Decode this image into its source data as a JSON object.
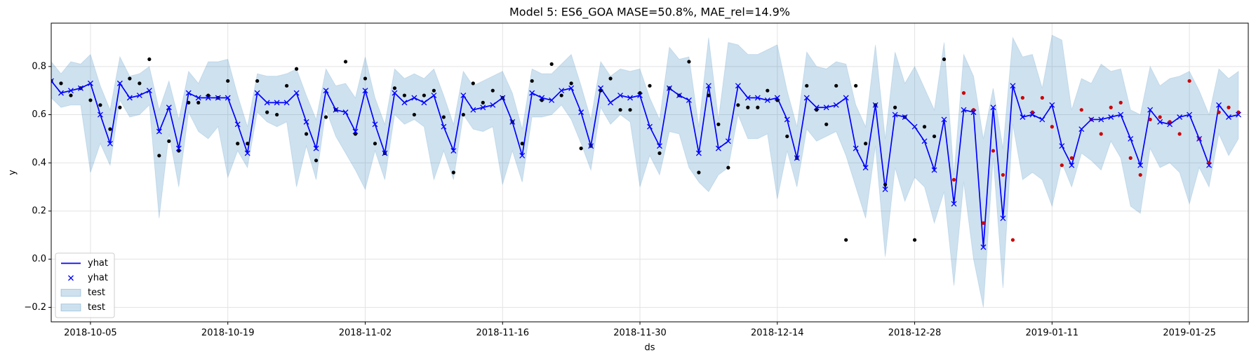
{
  "chart_data": {
    "type": "line",
    "title": "Model 5: ES6_GOA MASE=50.8%, MAE_rel=14.9%",
    "x_label": "ds",
    "y_label": "y",
    "x": [
      "2018-10-01",
      "2018-10-02",
      "2018-10-03",
      "2018-10-04",
      "2018-10-05",
      "2018-10-06",
      "2018-10-07",
      "2018-10-08",
      "2018-10-09",
      "2018-10-10",
      "2018-10-11",
      "2018-10-12",
      "2018-10-13",
      "2018-10-14",
      "2018-10-15",
      "2018-10-16",
      "2018-10-17",
      "2018-10-18",
      "2018-10-19",
      "2018-10-20",
      "2018-10-21",
      "2018-10-22",
      "2018-10-23",
      "2018-10-24",
      "2018-10-25",
      "2018-10-26",
      "2018-10-27",
      "2018-10-28",
      "2018-10-29",
      "2018-10-30",
      "2018-10-31",
      "2018-11-01",
      "2018-11-02",
      "2018-11-03",
      "2018-11-04",
      "2018-11-05",
      "2018-11-06",
      "2018-11-07",
      "2018-11-08",
      "2018-11-09",
      "2018-11-10",
      "2018-11-11",
      "2018-11-12",
      "2018-11-13",
      "2018-11-14",
      "2018-11-15",
      "2018-11-16",
      "2018-11-17",
      "2018-11-18",
      "2018-11-19",
      "2018-11-20",
      "2018-11-21",
      "2018-11-22",
      "2018-11-23",
      "2018-11-24",
      "2018-11-25",
      "2018-11-26",
      "2018-11-27",
      "2018-11-28",
      "2018-11-29",
      "2018-11-30",
      "2018-12-01",
      "2018-12-02",
      "2018-12-03",
      "2018-12-04",
      "2018-12-05",
      "2018-12-06",
      "2018-12-07",
      "2018-12-08",
      "2018-12-09",
      "2018-12-10",
      "2018-12-11",
      "2018-12-12",
      "2018-12-13",
      "2018-12-14",
      "2018-12-15",
      "2018-12-16",
      "2018-12-17",
      "2018-12-18",
      "2018-12-19",
      "2018-12-20",
      "2018-12-21",
      "2018-12-22",
      "2018-12-23",
      "2018-12-24",
      "2018-12-25",
      "2018-12-26",
      "2018-12-27",
      "2018-12-28",
      "2018-12-29",
      "2018-12-30",
      "2018-12-31",
      "2019-01-01",
      "2019-01-02",
      "2019-01-03",
      "2019-01-04",
      "2019-01-05",
      "2019-01-06",
      "2019-01-07",
      "2019-01-08",
      "2019-01-09",
      "2019-01-10",
      "2019-01-11",
      "2019-01-12",
      "2019-01-13",
      "2019-01-14",
      "2019-01-15",
      "2019-01-16",
      "2019-01-17",
      "2019-01-18",
      "2019-01-19",
      "2019-01-20",
      "2019-01-21",
      "2019-01-22",
      "2019-01-23",
      "2019-01-24",
      "2019-01-25",
      "2019-01-26",
      "2019-01-27",
      "2019-01-28",
      "2019-01-29",
      "2019-01-30"
    ],
    "xlim": [
      "2018-10-01",
      "2019-01-31"
    ],
    "xticks": [
      "2018-10-05",
      "2018-10-19",
      "2018-11-02",
      "2018-11-16",
      "2018-11-30",
      "2018-12-14",
      "2018-12-28",
      "2019-01-11",
      "2019-01-25"
    ],
    "ylim": [
      -0.26,
      0.98
    ],
    "yticks": [
      {
        "value": -0.2,
        "label": "−0.2"
      },
      {
        "value": 0,
        "label": "0.0"
      },
      0.2,
      0.4,
      0.6,
      0.8
    ],
    "grid": true,
    "legend": {
      "loc": "lower left",
      "entries": [
        {
          "label": "yhat",
          "kind": "line",
          "color": "#0000ff"
        },
        {
          "label": "yhat",
          "kind": "x",
          "color": "#0000ff"
        },
        {
          "label": "test",
          "kind": "band",
          "color": "#1f77b4"
        },
        {
          "label": "test",
          "kind": "band",
          "color": "#1f77b4"
        }
      ]
    },
    "yhat": {
      "color": "#0000ff",
      "values": [
        0.74,
        0.69,
        0.7,
        0.71,
        0.73,
        0.6,
        0.48,
        0.73,
        0.67,
        0.68,
        0.7,
        0.53,
        0.63,
        0.46,
        0.69,
        0.67,
        0.67,
        0.67,
        0.67,
        0.56,
        0.44,
        0.69,
        0.65,
        0.65,
        0.65,
        0.69,
        0.57,
        0.46,
        0.7,
        0.62,
        0.61,
        0.53,
        0.7,
        0.56,
        0.44,
        0.69,
        0.65,
        0.67,
        0.65,
        0.68,
        0.55,
        0.45,
        0.68,
        0.62,
        0.63,
        0.64,
        0.67,
        0.57,
        0.43,
        0.69,
        0.67,
        0.66,
        0.7,
        0.71,
        0.61,
        0.47,
        0.71,
        0.65,
        0.68,
        0.67,
        0.68,
        0.55,
        0.47,
        0.71,
        0.68,
        0.66,
        0.44,
        0.72,
        0.46,
        0.49,
        0.72,
        0.67,
        0.67,
        0.66,
        0.67,
        0.58,
        0.42,
        0.67,
        0.63,
        0.63,
        0.64,
        0.67,
        0.46,
        0.38,
        0.64,
        0.29,
        0.6,
        0.59,
        0.55,
        0.49,
        0.37,
        0.58,
        0.23,
        0.62,
        0.61,
        0.05,
        0.63,
        0.17,
        0.72,
        0.59,
        0.6,
        0.58,
        0.64,
        0.47,
        0.39,
        0.54,
        0.58,
        0.58,
        0.59,
        0.6,
        0.5,
        0.39,
        0.62,
        0.57,
        0.56,
        0.59,
        0.6,
        0.5,
        0.39,
        0.64,
        0.59,
        0.6
      ]
    },
    "band": {
      "color": "#1f77b4",
      "upper": [
        0.82,
        0.77,
        0.82,
        0.81,
        0.85,
        0.72,
        0.62,
        0.84,
        0.76,
        0.77,
        0.8,
        0.62,
        0.74,
        0.58,
        0.78,
        0.73,
        0.82,
        0.82,
        0.83,
        0.68,
        0.55,
        0.77,
        0.76,
        0.76,
        0.77,
        0.79,
        0.68,
        0.58,
        0.79,
        0.72,
        0.73,
        0.67,
        0.84,
        0.67,
        0.56,
        0.79,
        0.75,
        0.77,
        0.75,
        0.79,
        0.68,
        0.56,
        0.78,
        0.72,
        0.74,
        0.76,
        0.78,
        0.69,
        0.54,
        0.79,
        0.77,
        0.77,
        0.81,
        0.85,
        0.72,
        0.58,
        0.82,
        0.76,
        0.79,
        0.78,
        0.79,
        0.67,
        0.58,
        0.88,
        0.83,
        0.84,
        0.55,
        0.92,
        0.58,
        0.9,
        0.89,
        0.85,
        0.85,
        0.87,
        0.89,
        0.7,
        0.55,
        0.86,
        0.8,
        0.79,
        0.82,
        0.81,
        0.64,
        0.55,
        0.89,
        0.5,
        0.86,
        0.73,
        0.8,
        0.71,
        0.62,
        0.9,
        0.35,
        0.85,
        0.76,
        0.5,
        0.71,
        0.46,
        0.92,
        0.84,
        0.85,
        0.71,
        0.93,
        0.91,
        0.62,
        0.75,
        0.73,
        0.81,
        0.78,
        0.79,
        0.62,
        0.6,
        0.8,
        0.72,
        0.75,
        0.76,
        0.78,
        0.7,
        0.6,
        0.79,
        0.75,
        0.78
      ],
      "lower": [
        0.67,
        0.63,
        0.64,
        0.64,
        0.36,
        0.48,
        0.39,
        0.66,
        0.59,
        0.6,
        0.64,
        0.17,
        0.52,
        0.3,
        0.61,
        0.53,
        0.5,
        0.55,
        0.34,
        0.45,
        0.38,
        0.61,
        0.57,
        0.55,
        0.57,
        0.3,
        0.47,
        0.33,
        0.62,
        0.51,
        0.44,
        0.37,
        0.29,
        0.45,
        0.33,
        0.6,
        0.56,
        0.58,
        0.55,
        0.33,
        0.45,
        0.33,
        0.6,
        0.54,
        0.53,
        0.55,
        0.31,
        0.45,
        0.32,
        0.59,
        0.59,
        0.6,
        0.64,
        0.58,
        0.48,
        0.37,
        0.63,
        0.56,
        0.6,
        0.57,
        0.3,
        0.43,
        0.35,
        0.53,
        0.52,
        0.38,
        0.32,
        0.28,
        0.35,
        0.38,
        0.6,
        0.5,
        0.5,
        0.52,
        0.25,
        0.45,
        0.3,
        0.54,
        0.49,
        0.51,
        0.53,
        0.43,
        0.3,
        0.17,
        0.47,
        0.01,
        0.38,
        0.24,
        0.34,
        0.3,
        0.15,
        0.28,
        -0.11,
        0.32,
        0.0,
        -0.2,
        0.42,
        -0.12,
        0.56,
        0.33,
        0.36,
        0.33,
        0.22,
        0.4,
        0.3,
        0.44,
        0.41,
        0.37,
        0.49,
        0.42,
        0.22,
        0.19,
        0.46,
        0.38,
        0.4,
        0.36,
        0.23,
        0.38,
        0.3,
        0.52,
        0.43,
        0.5
      ]
    },
    "train": {
      "color": "#000000",
      "values": [
        0.74,
        0.73,
        0.68,
        0.71,
        0.66,
        0.64,
        0.54,
        0.63,
        0.75,
        0.73,
        0.83,
        0.43,
        0.49,
        0.45,
        0.65,
        0.65,
        0.68,
        0.67,
        0.74,
        0.48,
        0.48,
        0.74,
        0.61,
        0.6,
        0.72,
        0.79,
        0.52,
        0.41,
        0.59,
        0.62,
        0.82,
        0.52,
        0.75,
        0.48,
        0.44,
        0.71,
        0.68,
        0.6,
        0.68,
        0.7,
        0.59,
        0.36,
        0.6,
        0.73,
        0.65,
        0.7,
        0.67,
        0.57,
        0.48,
        0.74,
        0.66,
        0.81,
        0.68,
        0.73,
        0.46,
        0.47,
        0.7,
        0.75,
        0.62,
        0.62,
        0.69,
        0.72,
        0.44,
        0.71,
        0.68,
        0.82,
        0.36,
        0.68,
        0.56,
        0.38,
        0.64,
        0.63,
        0.63,
        0.7,
        0.66,
        0.51,
        0.42,
        0.72,
        0.62,
        0.56,
        0.72,
        0.08,
        0.72,
        0.48,
        0.64,
        0.31,
        0.63,
        0.59,
        0.08,
        0.55,
        0.51,
        0.83,
        null,
        null,
        null,
        null,
        null,
        null,
        null,
        null,
        null,
        null,
        null,
        null,
        null,
        null,
        null,
        null,
        null,
        null,
        null,
        null,
        null,
        null,
        null,
        null,
        null,
        null,
        null,
        null,
        null,
        null
      ]
    },
    "test": {
      "color": "#cc0000",
      "values": [
        null,
        null,
        null,
        null,
        null,
        null,
        null,
        null,
        null,
        null,
        null,
        null,
        null,
        null,
        null,
        null,
        null,
        null,
        null,
        null,
        null,
        null,
        null,
        null,
        null,
        null,
        null,
        null,
        null,
        null,
        null,
        null,
        null,
        null,
        null,
        null,
        null,
        null,
        null,
        null,
        null,
        null,
        null,
        null,
        null,
        null,
        null,
        null,
        null,
        null,
        null,
        null,
        null,
        null,
        null,
        null,
        null,
        null,
        null,
        null,
        null,
        null,
        null,
        null,
        null,
        null,
        null,
        null,
        null,
        null,
        null,
        null,
        null,
        null,
        null,
        null,
        null,
        null,
        null,
        null,
        null,
        null,
        null,
        null,
        null,
        null,
        null,
        null,
        null,
        null,
        null,
        null,
        0.33,
        0.69,
        0.62,
        0.15,
        0.45,
        0.35,
        0.08,
        0.67,
        0.61,
        0.67,
        0.55,
        0.39,
        0.42,
        0.62,
        0.58,
        0.52,
        0.63,
        0.65,
        0.42,
        0.35,
        0.58,
        0.59,
        0.57,
        0.52,
        0.74,
        0.5,
        0.4,
        0.61,
        0.63,
        0.61
      ]
    }
  }
}
